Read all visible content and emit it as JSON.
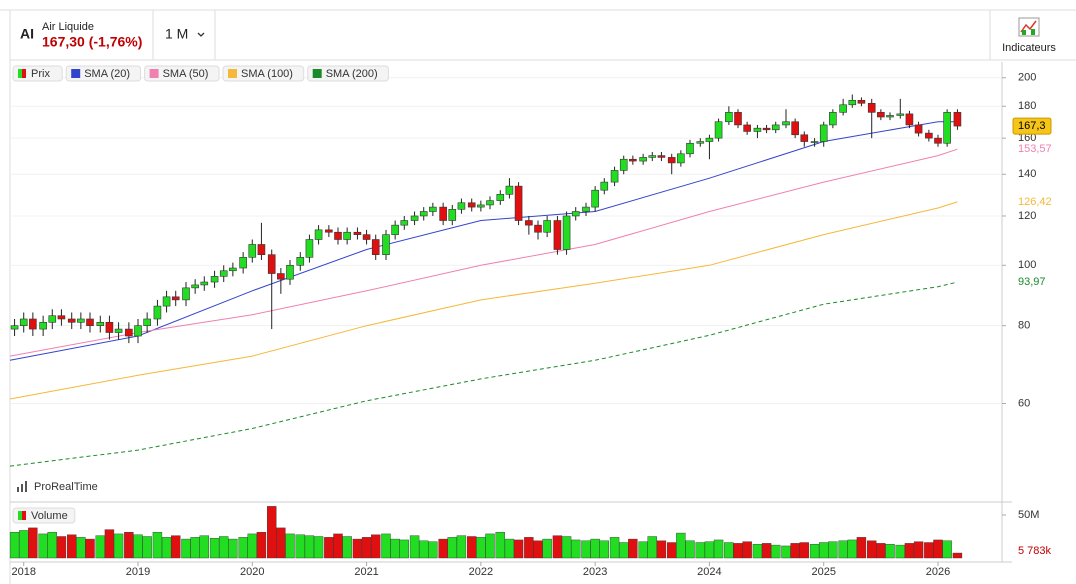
{
  "header": {
    "ticker": "AI",
    "name": "Air Liquide",
    "price": "167,30 (-1,76%)",
    "period": "1 M",
    "indicators": "Indicateurs"
  },
  "footer": {
    "brand": "ProRealTime"
  },
  "chart_data": [
    {
      "type": "candlestick",
      "name": "Prix",
      "up_color": "#22dd22",
      "down_color": "#e01010",
      "log_scale": true,
      "grid": true,
      "xlim": [
        2017.88,
        2026.56
      ],
      "xticks": [
        2018,
        2019,
        2020,
        2021,
        2022,
        2023,
        2024,
        2025,
        2026
      ],
      "ylim": [
        42,
        212
      ],
      "yticks": [
        200,
        180,
        160,
        140,
        120,
        100,
        80,
        60
      ],
      "x": [
        2017.92,
        2018.0,
        2018.08,
        2018.17,
        2018.25,
        2018.33,
        2018.42,
        2018.5,
        2018.58,
        2018.67,
        2018.75,
        2018.83,
        2018.92,
        2019.0,
        2019.08,
        2019.17,
        2019.25,
        2019.33,
        2019.42,
        2019.5,
        2019.58,
        2019.67,
        2019.75,
        2019.83,
        2019.92,
        2020.0,
        2020.08,
        2020.17,
        2020.25,
        2020.33,
        2020.42,
        2020.5,
        2020.58,
        2020.67,
        2020.75,
        2020.83,
        2020.92,
        2021.0,
        2021.08,
        2021.17,
        2021.25,
        2021.33,
        2021.42,
        2021.5,
        2021.58,
        2021.67,
        2021.75,
        2021.83,
        2021.92,
        2022.0,
        2022.08,
        2022.17,
        2022.25,
        2022.33,
        2022.42,
        2022.5,
        2022.58,
        2022.67,
        2022.75,
        2022.83,
        2022.92,
        2023.0,
        2023.08,
        2023.17,
        2023.25,
        2023.33,
        2023.42,
        2023.5,
        2023.58,
        2023.67,
        2023.75,
        2023.83,
        2023.92,
        2024.0,
        2024.08,
        2024.17,
        2024.25,
        2024.33,
        2024.42,
        2024.5,
        2024.58,
        2024.67,
        2024.75,
        2024.83,
        2024.92,
        2025.0,
        2025.08,
        2025.17,
        2025.25,
        2025.33,
        2025.42,
        2025.5,
        2025.58,
        2025.67,
        2025.75,
        2025.83,
        2025.92,
        2026.0,
        2026.08,
        2026.17
      ],
      "open": [
        79,
        80,
        82,
        79,
        81,
        83,
        82,
        81,
        82,
        80,
        81,
        78,
        79,
        77,
        80,
        82,
        86,
        89,
        88,
        92,
        93,
        94,
        96,
        98,
        99,
        103,
        108,
        104,
        97,
        95,
        100,
        103,
        110,
        114,
        113,
        110,
        113,
        112,
        110,
        104,
        112,
        116,
        118,
        120,
        122,
        124,
        118,
        123,
        126,
        124,
        125,
        127,
        130,
        134,
        118,
        116,
        113,
        118,
        106,
        120,
        122,
        124,
        132,
        136,
        142,
        148,
        147,
        149,
        150,
        149,
        146,
        151,
        157,
        158,
        160,
        170,
        176,
        168,
        164,
        166,
        165,
        168,
        170,
        162,
        158,
        158,
        168,
        176,
        181,
        184,
        182,
        176,
        173,
        174,
        175,
        168,
        163,
        160,
        157,
        176
      ],
      "high": [
        82,
        84,
        84,
        83,
        85,
        85,
        84,
        84,
        84,
        83,
        83,
        81,
        81,
        82,
        84,
        88,
        91,
        91,
        94,
        95,
        96,
        98,
        100,
        101,
        105,
        110,
        117,
        106,
        99,
        102,
        105,
        112,
        116,
        116,
        115,
        115,
        115,
        114,
        112,
        114,
        118,
        120,
        122,
        124,
        126,
        126,
        125,
        128,
        128,
        127,
        129,
        132,
        138,
        136,
        120,
        118,
        120,
        120,
        122,
        124,
        126,
        134,
        138,
        144,
        150,
        150,
        151,
        152,
        152,
        151,
        153,
        159,
        160,
        162,
        172,
        180,
        178,
        170,
        168,
        168,
        170,
        178,
        172,
        164,
        160,
        170,
        178,
        185,
        188,
        186,
        185,
        178,
        176,
        185,
        177,
        170,
        165,
        162,
        178,
        178
      ],
      "low": [
        77,
        78,
        77,
        77,
        79,
        80,
        79,
        79,
        78,
        78,
        76,
        76,
        75,
        75,
        78,
        80,
        84,
        86,
        86,
        90,
        91,
        92,
        94,
        96,
        97,
        101,
        102,
        79,
        90,
        93,
        98,
        101,
        108,
        111,
        108,
        108,
        110,
        108,
        102,
        102,
        110,
        114,
        116,
        118,
        120,
        116,
        116,
        121,
        122,
        122,
        123,
        125,
        128,
        116,
        112,
        110,
        111,
        104,
        104,
        118,
        120,
        122,
        130,
        134,
        140,
        145,
        145,
        147,
        147,
        140,
        144,
        149,
        155,
        148,
        158,
        168,
        166,
        162,
        160,
        163,
        163,
        166,
        160,
        155,
        155,
        155,
        166,
        174,
        179,
        180,
        160,
        171,
        171,
        172,
        166,
        161,
        158,
        155,
        155,
        165
      ],
      "close": [
        80,
        82,
        79,
        81,
        83,
        82,
        81,
        82,
        80,
        81,
        78,
        79,
        77,
        80,
        82,
        86,
        89,
        88,
        92,
        93,
        94,
        96,
        98,
        99,
        103,
        108,
        104,
        97,
        95,
        100,
        103,
        110,
        114,
        113,
        110,
        113,
        112,
        110,
        104,
        112,
        116,
        118,
        120,
        122,
        124,
        118,
        123,
        126,
        124,
        125,
        127,
        130,
        134,
        118,
        116,
        113,
        118,
        106,
        120,
        122,
        124,
        132,
        136,
        142,
        148,
        147,
        149,
        150,
        149,
        146,
        151,
        157,
        158,
        160,
        170,
        176,
        168,
        164,
        166,
        165,
        168,
        170,
        162,
        158,
        158,
        168,
        176,
        181,
        184,
        182,
        176,
        173,
        174,
        175,
        168,
        163,
        160,
        157,
        176,
        167.3
      ],
      "last_label": "167,3",
      "last_label_color": "#f5c518",
      "series": [
        {
          "name": "SMA (20)",
          "color": "#3344cc",
          "dashed": false,
          "x": [
            2017.88,
            2019,
            2020,
            2021,
            2022,
            2023,
            2024,
            2025,
            2026,
            2026.17
          ],
          "values": [
            70.4,
            77,
            91,
            106,
            118,
            122,
            138,
            158,
            170,
            170
          ]
        },
        {
          "name": "SMA (50)",
          "color": "#f080b0",
          "dashed": false,
          "end_label": "153,57",
          "x": [
            2017.88,
            2019,
            2020,
            2021,
            2022,
            2023,
            2024,
            2025,
            2026,
            2026.17
          ],
          "values": [
            71.5,
            78,
            83.3,
            91,
            100,
            108,
            122,
            136,
            150,
            153.57
          ]
        },
        {
          "name": "SMA (100)",
          "color": "#f5b83a",
          "dashed": false,
          "end_label": "126,42",
          "x": [
            2017.88,
            2019,
            2020,
            2021,
            2022,
            2023,
            2024,
            2025,
            2026,
            2026.17
          ],
          "values": [
            61,
            66.6,
            71.5,
            80,
            88,
            93.6,
            100,
            112,
            123.6,
            126.42
          ]
        },
        {
          "name": "SMA (200)",
          "color": "#1a8a2a",
          "dashed": true,
          "end_label": "93,97",
          "x": [
            2017.88,
            2019,
            2020,
            2021,
            2022,
            2023,
            2024,
            2025,
            2026,
            2026.17
          ],
          "values": [
            47.6,
            50.5,
            54.7,
            60.6,
            65.7,
            70.4,
            77.2,
            86.6,
            92.4,
            93.97
          ]
        }
      ]
    },
    {
      "type": "bar",
      "name": "Volume",
      "ylim": [
        0,
        61.6
      ],
      "yticks": [
        {
          "value": 50,
          "label": "50M"
        }
      ],
      "end_label": "5 783k",
      "values": [
        30,
        32,
        35,
        28,
        30,
        25,
        27,
        24,
        22,
        26,
        33,
        28,
        30,
        27,
        25,
        30,
        24,
        26,
        22,
        24,
        26,
        23,
        25,
        22,
        24,
        28,
        30,
        60,
        35,
        28,
        27,
        26,
        25,
        24,
        28,
        25,
        22,
        24,
        27,
        28,
        22,
        21,
        26,
        20,
        19,
        22,
        24,
        26,
        25,
        24,
        28,
        30,
        22,
        21,
        24,
        20,
        22,
        26,
        25,
        21,
        20,
        22,
        20,
        24,
        18,
        22,
        19,
        25,
        20,
        18,
        29,
        20,
        18,
        19,
        21,
        18,
        17,
        19,
        16,
        17,
        15,
        14,
        17,
        18,
        16,
        18,
        19,
        20,
        21,
        24,
        20,
        17,
        16,
        15,
        17,
        19,
        18,
        21,
        20,
        5.783
      ]
    }
  ]
}
